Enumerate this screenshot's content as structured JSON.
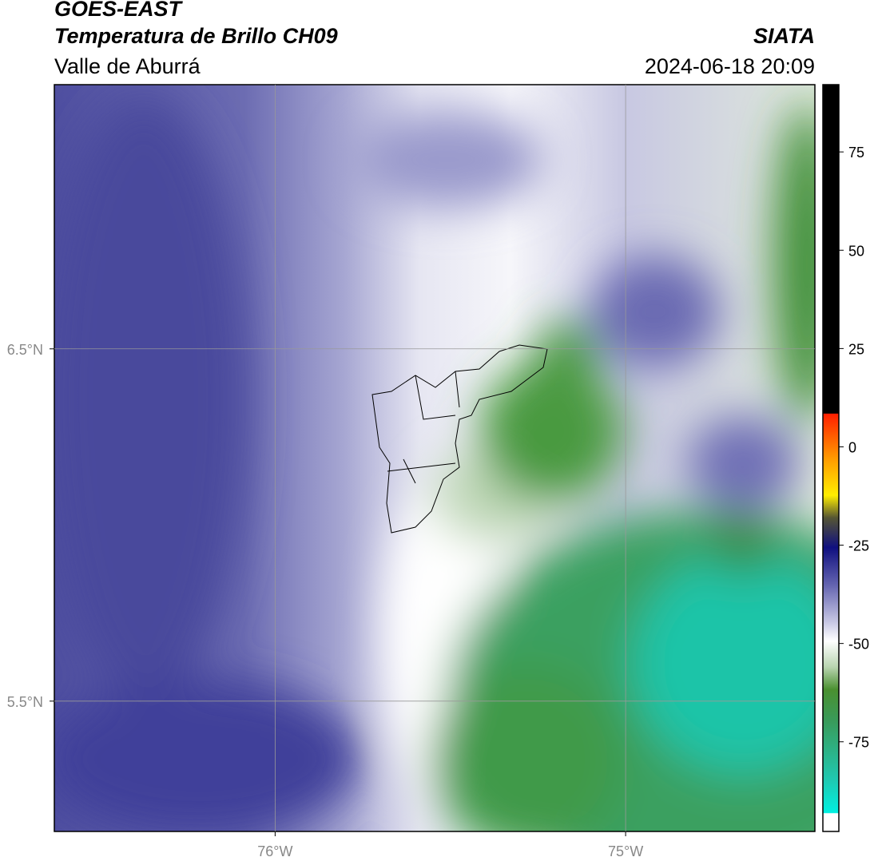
{
  "header": {
    "title": "GOES-EAST",
    "subtitle": "Temperatura de Brillo CH09",
    "region": "Valle de Aburrá",
    "source": "SIATA",
    "datetime": "2024-06-18 20:09"
  },
  "map": {
    "xlim": [
      -76.63,
      -74.46
    ],
    "ylim": [
      5.13,
      7.25
    ],
    "xticks": [
      {
        "value": -76,
        "label": "76°W"
      },
      {
        "value": -75,
        "label": "75°W"
      }
    ],
    "yticks": [
      {
        "value": 6.5,
        "label": "6.5°N"
      },
      {
        "value": 5.5,
        "label": "5.5°N"
      }
    ],
    "grid": true
  },
  "colorbar": {
    "lim": [
      -97.8,
      92.1
    ],
    "ticks": [
      75,
      50,
      25,
      0,
      -25,
      -50,
      -75
    ]
  }
}
